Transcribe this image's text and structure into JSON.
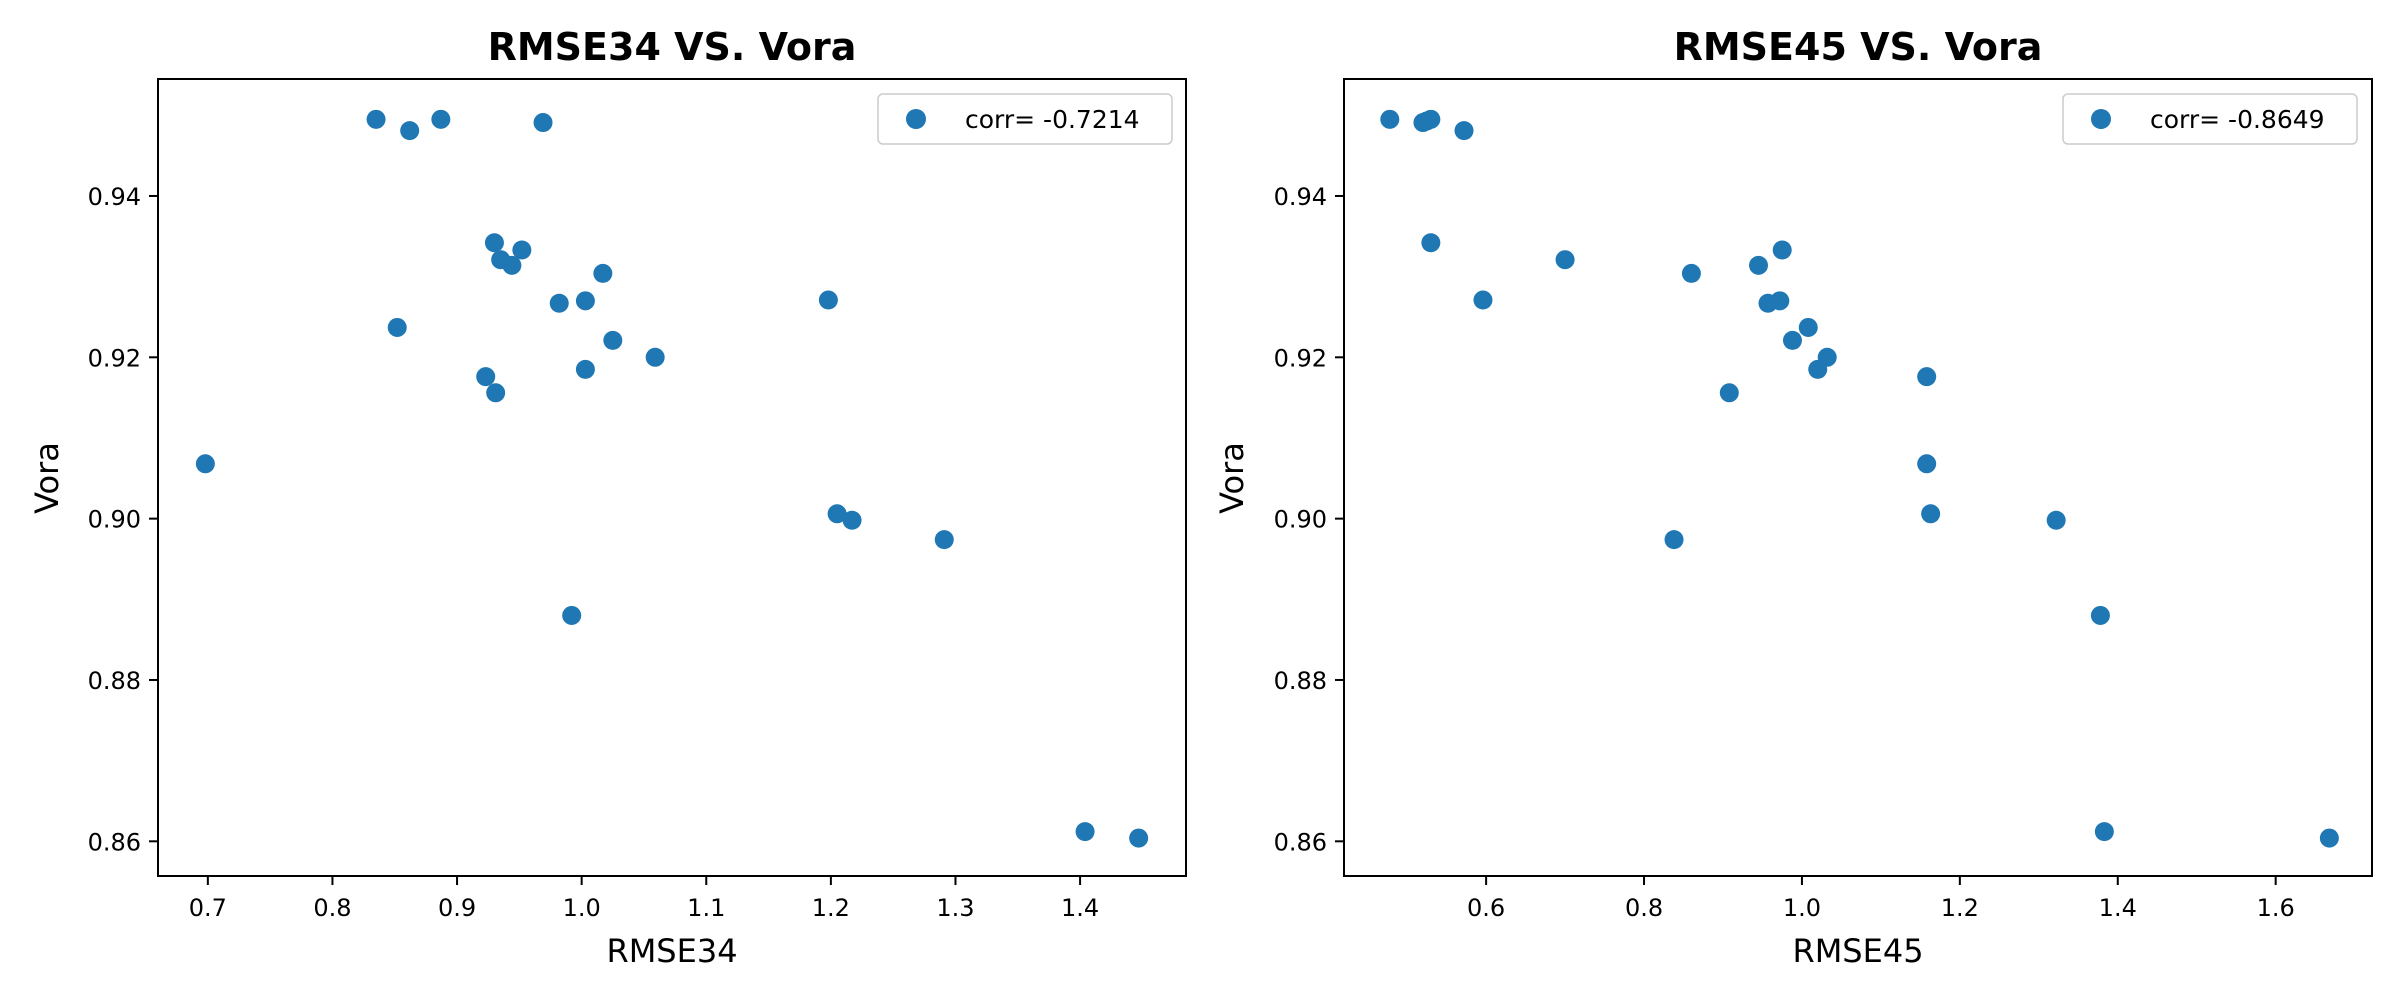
{
  "chart_data": [
    {
      "type": "scatter",
      "title": "RMSE34 VS. Vora",
      "xlabel": "RMSE34",
      "ylabel": "Vora",
      "xlim": [
        0.66,
        1.485
      ],
      "ylim": [
        0.8557,
        0.9545
      ],
      "xticks": [
        0.7,
        0.8,
        0.9,
        1.0,
        1.1,
        1.2,
        1.3,
        1.4
      ],
      "xtick_labels": [
        "0.7",
        "0.8",
        "0.9",
        "1.0",
        "1.1",
        "1.2",
        "1.3",
        "1.4"
      ],
      "yticks": [
        0.86,
        0.88,
        0.9,
        0.92,
        0.94
      ],
      "ytick_labels": [
        "0.86",
        "0.88",
        "0.90",
        "0.92",
        "0.94"
      ],
      "grid": false,
      "legend_position": "upper right",
      "series": [
        {
          "name": "corr= -0.7214",
          "color": "#1f77b4",
          "x": [
            0.835,
            0.862,
            0.887,
            0.969,
            0.93,
            0.952,
            0.935,
            0.944,
            1.017,
            0.982,
            1.003,
            1.198,
            0.852,
            1.025,
            1.059,
            1.003,
            0.923,
            0.931,
            0.698,
            1.205,
            1.217,
            1.291,
            0.992,
            1.404,
            1.447
          ],
          "y": [
            0.9495,
            0.9481,
            0.9495,
            0.9491,
            0.9342,
            0.9333,
            0.9321,
            0.9314,
            0.9304,
            0.9267,
            0.927,
            0.9271,
            0.9237,
            0.9221,
            0.92,
            0.9185,
            0.9176,
            0.9156,
            0.9068,
            0.9006,
            0.8998,
            0.8974,
            0.888,
            0.8612,
            0.8604
          ]
        }
      ]
    },
    {
      "type": "scatter",
      "title": "RMSE45 VS. Vora",
      "xlabel": "RMSE45",
      "ylabel": "Vora",
      "xlim": [
        0.42,
        1.722
      ],
      "ylim": [
        0.8557,
        0.9545
      ],
      "xticks": [
        0.6,
        0.8,
        1.0,
        1.2,
        1.4,
        1.6
      ],
      "xtick_labels": [
        "0.6",
        "0.8",
        "1.0",
        "1.2",
        "1.4",
        "1.6"
      ],
      "yticks": [
        0.86,
        0.88,
        0.9,
        0.92,
        0.94
      ],
      "ytick_labels": [
        "0.86",
        "0.88",
        "0.90",
        "0.92",
        "0.94"
      ],
      "grid": false,
      "legend_position": "upper right",
      "series": [
        {
          "name": "corr= -0.8649",
          "color": "#1f77b4",
          "x": [
            0.478,
            0.52,
            0.525,
            0.53,
            0.572,
            0.53,
            0.7,
            0.596,
            0.86,
            0.945,
            0.975,
            0.957,
            0.972,
            1.008,
            0.988,
            1.032,
            1.02,
            1.158,
            0.908,
            1.158,
            1.163,
            1.322,
            0.838,
            1.378,
            1.383,
            1.668
          ],
          "y": [
            0.9495,
            0.9491,
            0.9493,
            0.9495,
            0.9481,
            0.9342,
            0.9321,
            0.9271,
            0.9304,
            0.9314,
            0.9333,
            0.9267,
            0.927,
            0.9237,
            0.9221,
            0.92,
            0.9185,
            0.9176,
            0.9156,
            0.9068,
            0.9006,
            0.8998,
            0.8974,
            0.888,
            0.8612,
            0.8604
          ]
        }
      ]
    }
  ]
}
